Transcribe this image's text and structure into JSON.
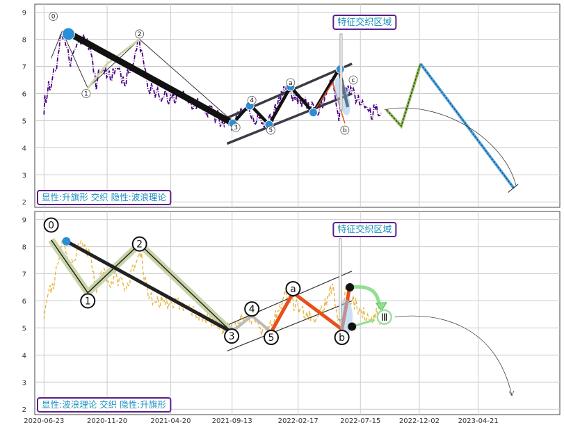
{
  "colors": {
    "grid": "#cccccc",
    "frame": "#444444",
    "top_price": "#4b0082",
    "bottom_price": "#e8b640",
    "blue_node": "#2a8fd6",
    "label_text": "#1a8fc0",
    "label_border": "#5a1f8a",
    "red_wave": "#e84e1b",
    "green_arrow": "#8fe08f",
    "gold_band": "#c9d4a8"
  },
  "chart_data": [
    {
      "type": "line",
      "panel": "top",
      "x_range": [
        "2020-06-01",
        "2023-11-01"
      ],
      "ylim": [
        1.8,
        9.3
      ],
      "y_ticks": [
        2,
        3,
        4,
        5,
        6,
        7,
        8,
        9
      ],
      "grid": true,
      "pattern_label": "显性:升旗形 交织 隐性:波浪理论",
      "zone_label": "特征交织区域",
      "price_series": [
        [
          "2020-06-23",
          5.5
        ],
        [
          "2020-07-01",
          6.1
        ],
        [
          "2020-07-20",
          6.8
        ],
        [
          "2020-08-05",
          8.3
        ],
        [
          "2020-08-25",
          7.2
        ],
        [
          "2020-09-10",
          7.8
        ],
        [
          "2020-09-25",
          8.1
        ],
        [
          "2020-10-10",
          7.6
        ],
        [
          "2020-10-25",
          6.4
        ],
        [
          "2020-11-10",
          7.0
        ],
        [
          "2020-11-25",
          6.6
        ],
        [
          "2020-12-10",
          6.9
        ],
        [
          "2021-01-01",
          6.4
        ],
        [
          "2021-01-20",
          7.1
        ],
        [
          "2021-02-05",
          8.0
        ],
        [
          "2021-02-25",
          6.2
        ],
        [
          "2021-03-20",
          6.0
        ],
        [
          "2021-04-20",
          5.8
        ],
        [
          "2021-05-20",
          5.9
        ],
        [
          "2021-06-20",
          5.6
        ],
        [
          "2021-07-20",
          5.4
        ],
        [
          "2021-08-20",
          5.0
        ],
        [
          "2021-09-15",
          4.9
        ],
        [
          "2021-10-01",
          5.2
        ],
        [
          "2021-10-20",
          5.6
        ],
        [
          "2021-11-10",
          5.0
        ],
        [
          "2021-12-05",
          4.8
        ],
        [
          "2021-12-25",
          5.4
        ],
        [
          "2022-01-20",
          6.2
        ],
        [
          "2022-02-10",
          5.8
        ],
        [
          "2022-03-10",
          5.6
        ],
        [
          "2022-04-01",
          5.3
        ],
        [
          "2022-04-20",
          5.8
        ],
        [
          "2022-05-10",
          6.6
        ],
        [
          "2022-05-25",
          5.2
        ],
        [
          "2022-06-10",
          6.4
        ],
        [
          "2022-07-01",
          5.9
        ],
        [
          "2022-07-20",
          5.6
        ],
        [
          "2022-08-10",
          5.3
        ],
        [
          "2022-08-25",
          5.5
        ],
        [
          "2022-09-05",
          5.2
        ]
      ],
      "wave_labels": [
        {
          "label": "0",
          "date": "2020-07-15",
          "value": 8.85
        },
        {
          "label": "1",
          "date": "2020-10-01",
          "value": 6.0
        },
        {
          "label": "2",
          "date": "2021-02-05",
          "value": 8.2
        },
        {
          "label": "3",
          "date": "2021-09-22",
          "value": 4.75
        },
        {
          "label": "4",
          "date": "2021-10-30",
          "value": 5.75
        },
        {
          "label": "5",
          "date": "2021-12-14",
          "value": 4.65
        },
        {
          "label": "a",
          "date": "2022-01-30",
          "value": 6.4
        },
        {
          "label": "b",
          "date": "2022-06-08",
          "value": 4.65
        },
        {
          "label": "c",
          "date": "2022-06-28",
          "value": 6.5
        }
      ]
    },
    {
      "type": "line",
      "panel": "bottom",
      "x_range": [
        "2020-06-01",
        "2023-11-01"
      ],
      "x_ticks": [
        "2020-06-23",
        "2020-11-20",
        "2021-04-20",
        "2021-09-13",
        "2022-02-17",
        "2022-07-15",
        "2022-12-02",
        "2023-04-21"
      ],
      "ylim": [
        1.8,
        9.3
      ],
      "y_ticks": [
        2,
        3,
        4,
        5,
        6,
        7,
        8,
        9
      ],
      "grid": true,
      "pattern_label": "显性:波浪理论 交织 隐性:升旗形",
      "zone_label": "特征交织区域",
      "wave_labels": [
        {
          "label": "0",
          "date": "2020-07-10",
          "value": 8.8
        },
        {
          "label": "1",
          "date": "2020-10-05",
          "value": 6.0
        },
        {
          "label": "2",
          "date": "2021-02-05",
          "value": 8.1
        },
        {
          "label": "3",
          "date": "2021-09-12",
          "value": 4.7
        },
        {
          "label": "4",
          "date": "2021-10-30",
          "value": 5.7
        },
        {
          "label": "5",
          "date": "2021-12-15",
          "value": 4.65
        },
        {
          "label": "a",
          "date": "2022-02-05",
          "value": 6.45
        },
        {
          "label": "b",
          "date": "2022-06-01",
          "value": 4.65
        },
        {
          "label": "Ⅲ",
          "date": "2022-09-10",
          "value": 5.4
        }
      ]
    }
  ]
}
